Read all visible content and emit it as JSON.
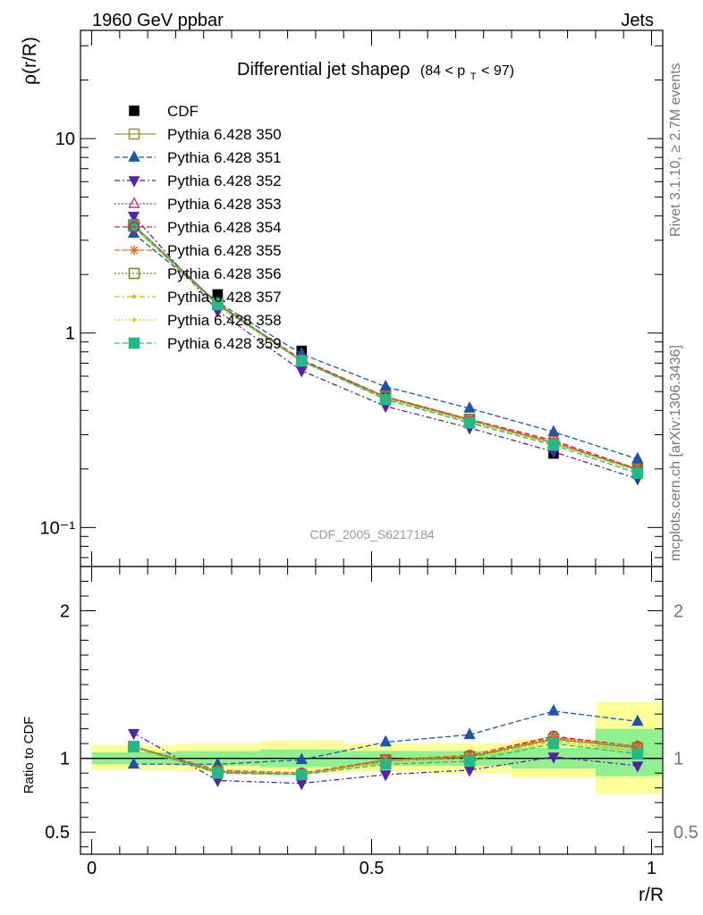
{
  "header": {
    "left": "1960 GeV ppbar",
    "right": "Jets"
  },
  "title": {
    "main": "Differential jet shapeρ",
    "range_prefix": "(84 < p",
    "range_sub": "T",
    "range_suffix": " < 97)"
  },
  "side_labels": {
    "rivet": "Rivet 3.1.10, ≥ 2.7M events",
    "mcplots": "mcplots.cern.ch [arXiv:1306.3436]"
  },
  "watermark": "CDF_2005_S6217184",
  "chart_data": [
    {
      "type": "line",
      "panel": "main",
      "ylabel": "ρ(r/R)",
      "yscale": "log",
      "ylim": [
        0.063,
        36
      ],
      "xlim": [
        -0.02,
        1.02
      ],
      "ytick_labels": [
        "10⁻¹",
        "1",
        "10"
      ],
      "x": [
        0.075,
        0.225,
        0.375,
        0.525,
        0.675,
        0.825,
        0.975
      ],
      "series": [
        {
          "name": "CDF",
          "color": "#000000",
          "marker": "filled-square",
          "dash": "",
          "values": [
            3.6,
            1.58,
            0.81,
            0.47,
            0.35,
            0.24,
            0.195
          ]
        },
        {
          "name": "Pythia 6.428 350",
          "color": "#999933",
          "marker": "open-square",
          "dash": "",
          "values": [
            3.6,
            1.42,
            0.72,
            0.47,
            0.36,
            0.27,
            0.2
          ]
        },
        {
          "name": "Pythia 6.428 351",
          "color": "#1a56b0",
          "marker": "filled-triangle-up",
          "dash": "6,3",
          "values": [
            3.25,
            1.44,
            0.78,
            0.53,
            0.41,
            0.31,
            0.225
          ]
        },
        {
          "name": "Pythia 6.428 352",
          "color": "#5522aa",
          "marker": "filled-triangle-down",
          "dash": "6,3,2,3",
          "values": [
            4.0,
            1.3,
            0.64,
            0.42,
            0.325,
            0.245,
            0.178
          ]
        },
        {
          "name": "Pythia 6.428 353",
          "color": "#cc3399",
          "marker": "open-triangle-up",
          "dash": "2,2",
          "values": [
            3.5,
            1.4,
            0.72,
            0.465,
            0.355,
            0.275,
            0.197
          ]
        },
        {
          "name": "Pythia 6.428 354",
          "color": "#ee1133",
          "marker": "open-circle",
          "dash": "6,3",
          "values": [
            3.55,
            1.41,
            0.73,
            0.47,
            0.36,
            0.28,
            0.2
          ]
        },
        {
          "name": "Pythia 6.428 355",
          "color": "#ee6622",
          "marker": "star",
          "dash": "6,3",
          "values": [
            3.5,
            1.4,
            0.72,
            0.465,
            0.357,
            0.276,
            0.198
          ]
        },
        {
          "name": "Pythia 6.428 356",
          "color": "#778822",
          "marker": "open-square",
          "dash": "2,2",
          "values": [
            3.6,
            1.42,
            0.72,
            0.47,
            0.36,
            0.27,
            0.2
          ]
        },
        {
          "name": "Pythia 6.428 357",
          "color": "#ccbb11",
          "marker": "small-dot",
          "dash": "6,3,2,3",
          "values": [
            3.5,
            1.39,
            0.715,
            0.46,
            0.35,
            0.27,
            0.195
          ]
        },
        {
          "name": "Pythia 6.428 358",
          "color": "#bbdd22",
          "marker": "small-dot",
          "dash": "2,2",
          "values": [
            3.5,
            1.38,
            0.71,
            0.46,
            0.35,
            0.27,
            0.195
          ]
        },
        {
          "name": "Pythia 6.428 359",
          "color": "#22bb88",
          "marker": "filled-square",
          "dash": "6,3",
          "values": [
            3.55,
            1.4,
            0.72,
            0.455,
            0.345,
            0.265,
            0.19
          ]
        }
      ]
    },
    {
      "type": "line",
      "panel": "ratio",
      "xlabel": "r/R",
      "ylabel": "Ratio to CDF",
      "ylim": [
        0.35,
        2.3
      ],
      "xlim": [
        -0.02,
        1.02
      ],
      "ytick_labels": [
        "0.5",
        "1",
        "2"
      ],
      "xtick_labels": [
        "0",
        "0.5",
        "1"
      ],
      "x": [
        0.075,
        0.225,
        0.375,
        0.525,
        0.675,
        0.825,
        0.975
      ],
      "band_edges": [
        0.0,
        0.15,
        0.3,
        0.45,
        0.6,
        0.75,
        0.9,
        1.05
      ],
      "band_inner": [
        [
          0.96,
          1.04
        ],
        [
          0.95,
          1.05
        ],
        [
          0.94,
          1.06
        ],
        [
          0.95,
          1.05
        ],
        [
          0.95,
          1.05
        ],
        [
          0.93,
          1.07
        ],
        [
          0.88,
          1.2
        ]
      ],
      "band_outer": [
        [
          0.92,
          1.09
        ],
        [
          0.91,
          1.1
        ],
        [
          0.9,
          1.12
        ],
        [
          0.91,
          1.1
        ],
        [
          0.9,
          1.1
        ],
        [
          0.87,
          1.13
        ],
        [
          0.76,
          1.38
        ]
      ],
      "band_colors": {
        "inner": "#8ef08e",
        "outer": "#ffff99"
      },
      "series": [
        {
          "name": "Pythia 6.428 350",
          "color": "#999933",
          "marker": "open-square",
          "dash": "",
          "values": [
            1.08,
            0.91,
            0.89,
            0.99,
            1.01,
            1.13,
            1.07
          ]
        },
        {
          "name": "Pythia 6.428 351",
          "color": "#1a56b0",
          "marker": "filled-triangle-up",
          "dash": "6,3",
          "values": [
            0.96,
            0.96,
            0.99,
            1.11,
            1.16,
            1.32,
            1.25
          ]
        },
        {
          "name": "Pythia 6.428 352",
          "color": "#5522aa",
          "marker": "filled-triangle-down",
          "dash": "6,3,2,3",
          "values": [
            1.17,
            0.85,
            0.83,
            0.89,
            0.92,
            1.01,
            0.95
          ]
        },
        {
          "name": "Pythia 6.428 353",
          "color": "#cc3399",
          "marker": "open-triangle-up",
          "dash": "2,2",
          "values": [
            1.07,
            0.91,
            0.89,
            0.98,
            1.01,
            1.14,
            1.08
          ]
        },
        {
          "name": "Pythia 6.428 354",
          "color": "#ee1133",
          "marker": "open-circle",
          "dash": "6,3",
          "values": [
            1.08,
            0.92,
            0.9,
            0.99,
            1.02,
            1.15,
            1.08
          ]
        },
        {
          "name": "Pythia 6.428 355",
          "color": "#ee6622",
          "marker": "star",
          "dash": "6,3",
          "values": [
            1.08,
            0.92,
            0.9,
            0.99,
            1.02,
            1.14,
            1.08
          ]
        },
        {
          "name": "Pythia 6.428 356",
          "color": "#778822",
          "marker": "open-square",
          "dash": "2,2",
          "values": [
            1.08,
            0.91,
            0.89,
            0.99,
            1.01,
            1.13,
            1.07
          ]
        },
        {
          "name": "Pythia 6.428 357",
          "color": "#ccbb11",
          "marker": "small-dot",
          "dash": "6,3,2,3",
          "values": [
            1.07,
            0.9,
            0.89,
            0.98,
            1.0,
            1.12,
            1.05
          ]
        },
        {
          "name": "Pythia 6.428 358",
          "color": "#bbdd22",
          "marker": "small-dot",
          "dash": "2,2",
          "values": [
            1.07,
            0.9,
            0.89,
            0.97,
            0.99,
            1.11,
            1.04
          ]
        },
        {
          "name": "Pythia 6.428 359",
          "color": "#22bb88",
          "marker": "filled-square",
          "dash": "6,3",
          "values": [
            1.08,
            0.9,
            0.89,
            0.96,
            0.98,
            1.1,
            1.03
          ]
        }
      ]
    }
  ]
}
